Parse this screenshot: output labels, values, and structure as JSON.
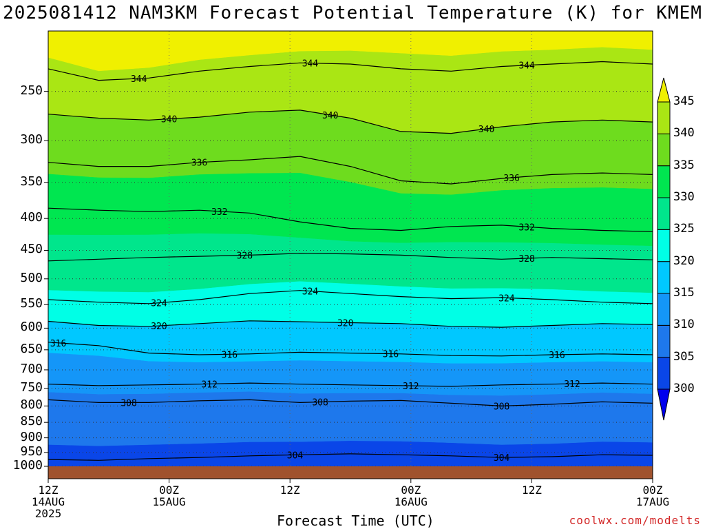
{
  "title": "2025081412 NAM3KM Forecast Potential Temperature (K) for KMEM",
  "credit": "coolwx.com/modelts",
  "chart_data": {
    "type": "heatmap",
    "title": "2025081412 NAM3KM Forecast Potential Temperature (K) for KMEM",
    "xlabel": "Forecast Time (UTC)",
    "ylabel": "",
    "x_range_hours": [
      0,
      60
    ],
    "y_range_hpa": [
      1000,
      200
    ],
    "y_scale": "log",
    "y_ticks": [
      250,
      300,
      350,
      400,
      450,
      500,
      550,
      600,
      650,
      700,
      750,
      800,
      850,
      900,
      950,
      1000
    ],
    "x_ticks": [
      {
        "hour": 0,
        "line1": "12Z",
        "line2": "14AUG",
        "line3": "2025"
      },
      {
        "hour": 12,
        "line1": "00Z",
        "line2": "15AUG",
        "line3": ""
      },
      {
        "hour": 24,
        "line1": "12Z",
        "line2": "",
        "line3": ""
      },
      {
        "hour": 36,
        "line1": "00Z",
        "line2": "16AUG",
        "line3": ""
      },
      {
        "hour": 48,
        "line1": "12Z",
        "line2": "",
        "line3": ""
      },
      {
        "hour": 60,
        "line1": "00Z",
        "line2": "17AUG",
        "line3": ""
      }
    ],
    "grid": true,
    "colorbar": {
      "levels": [
        300,
        305,
        310,
        315,
        320,
        325,
        330,
        335,
        340,
        345
      ],
      "colors": [
        "#0000ee",
        "#0a46e8",
        "#1e78ec",
        "#1496f8",
        "#00c8ff",
        "#00ffe6",
        "#00e68c",
        "#00e650",
        "#6edc1e",
        "#aae614",
        "#f0f000"
      ],
      "extend": "both",
      "placement": "right"
    },
    "contours": [
      {
        "value": 304,
        "pressure": [
          975,
          978,
          972,
          968,
          962,
          958,
          955,
          958,
          962,
          968,
          965,
          958,
          960
        ],
        "labels": [
          {
            "hour": 24.5,
            "text": "304"
          },
          {
            "hour": 45,
            "text": "304"
          }
        ]
      },
      {
        "value": 308,
        "pressure": [
          782,
          790,
          790,
          785,
          782,
          790,
          786,
          784,
          792,
          800,
          795,
          788,
          792
        ],
        "labels": [
          {
            "hour": 8,
            "text": "308"
          },
          {
            "hour": 27,
            "text": "308"
          },
          {
            "hour": 45,
            "text": "308"
          }
        ]
      },
      {
        "value": 312,
        "pressure": [
          738,
          742,
          740,
          738,
          735,
          738,
          740,
          742,
          744,
          740,
          738,
          735,
          738
        ],
        "labels": [
          {
            "hour": 16,
            "text": "312"
          },
          {
            "hour": 36,
            "text": "312"
          },
          {
            "hour": 52,
            "text": "312"
          }
        ]
      },
      {
        "value": 316,
        "pressure": [
          632,
          640,
          658,
          662,
          660,
          656,
          658,
          660,
          664,
          665,
          662,
          660,
          662
        ],
        "labels": [
          {
            "hour": 1,
            "text": "316"
          },
          {
            "hour": 18,
            "text": "316"
          },
          {
            "hour": 34,
            "text": "316"
          },
          {
            "hour": 50.5,
            "text": "316"
          }
        ]
      },
      {
        "value": 320,
        "pressure": [
          585,
          594,
          596,
          590,
          584,
          586,
          588,
          590,
          596,
          598,
          594,
          590,
          592
        ],
        "labels": [
          {
            "hour": 11,
            "text": "320"
          },
          {
            "hour": 29.5,
            "text": "320"
          }
        ]
      },
      {
        "value": 324,
        "pressure": [
          540,
          545,
          548,
          540,
          528,
          522,
          528,
          534,
          538,
          536,
          540,
          545,
          548
        ],
        "labels": [
          {
            "hour": 11,
            "text": "324"
          },
          {
            "hour": 26,
            "text": "324"
          },
          {
            "hour": 45.5,
            "text": "324"
          }
        ]
      },
      {
        "value": 328,
        "pressure": [
          468,
          465,
          462,
          460,
          458,
          455,
          456,
          458,
          462,
          465,
          462,
          464,
          466
        ],
        "labels": [
          {
            "hour": 19.5,
            "text": "328"
          },
          {
            "hour": 47.5,
            "text": "328"
          }
        ]
      },
      {
        "value": 332,
        "pressure": [
          385,
          388,
          390,
          388,
          392,
          405,
          415,
          418,
          412,
          410,
          415,
          418,
          420
        ],
        "labels": [
          {
            "hour": 17,
            "text": "332"
          },
          {
            "hour": 47.5,
            "text": "332"
          }
        ]
      },
      {
        "value": 336,
        "pressure": [
          325,
          330,
          330,
          325,
          322,
          318,
          330,
          348,
          352,
          345,
          340,
          338,
          340
        ],
        "labels": [
          {
            "hour": 15,
            "text": "336"
          },
          {
            "hour": 46,
            "text": "336"
          }
        ]
      },
      {
        "value": 340,
        "pressure": [
          272,
          276,
          278,
          275,
          270,
          268,
          276,
          290,
          292,
          285,
          280,
          278,
          280
        ],
        "labels": [
          {
            "hour": 12,
            "text": "340"
          },
          {
            "hour": 28,
            "text": "340"
          },
          {
            "hour": 43.5,
            "text": "340"
          }
        ]
      },
      {
        "value": 344,
        "pressure": [
          230,
          240,
          238,
          232,
          228,
          225,
          226,
          230,
          232,
          228,
          226,
          224,
          226
        ],
        "labels": [
          {
            "hour": 9,
            "text": "344"
          },
          {
            "hour": 26,
            "text": "344"
          },
          {
            "hour": 47.5,
            "text": "344"
          }
        ]
      }
    ]
  }
}
